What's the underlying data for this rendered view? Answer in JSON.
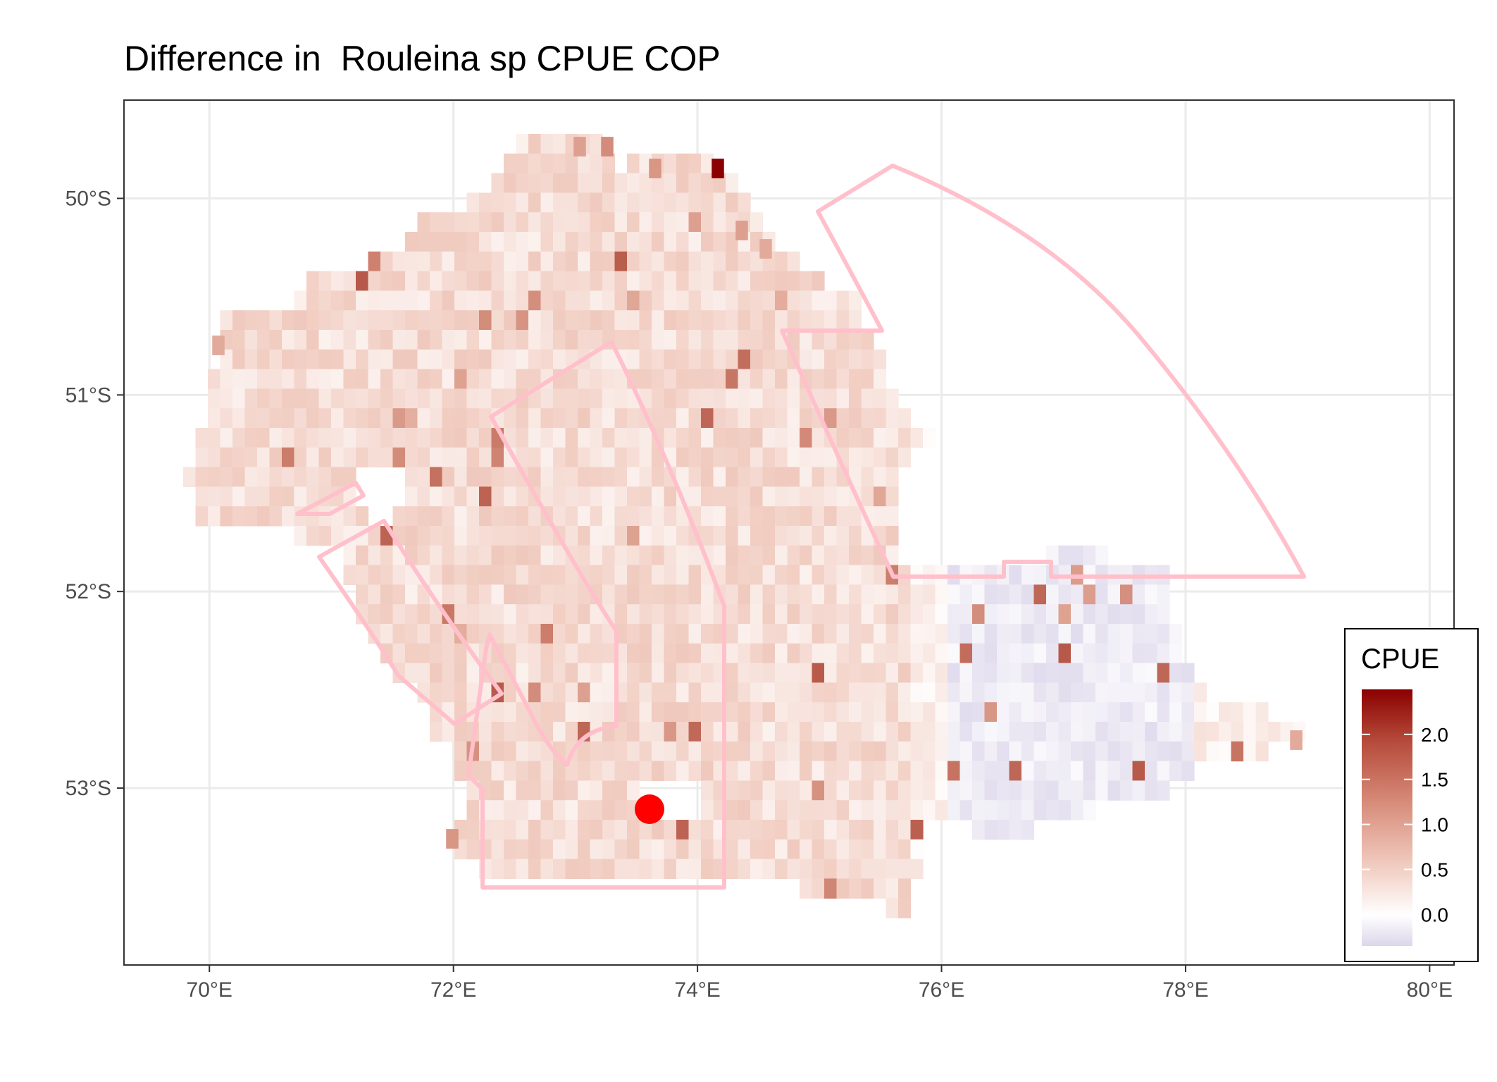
{
  "title": "Difference in  Rouleina sp CPUE COP",
  "map": {
    "x_axis": {
      "ticks": [
        "70°E",
        "72°E",
        "74°E",
        "76°E",
        "78°E",
        "80°E"
      ],
      "values": [
        70,
        72,
        74,
        76,
        78,
        80
      ],
      "range": [
        69.3,
        80.2
      ]
    },
    "y_axis": {
      "ticks": [
        "50°S",
        "51°S",
        "52°S",
        "53°S"
      ],
      "values": [
        -50,
        -51,
        -52,
        -53
      ],
      "range": [
        -53.9,
        -49.5
      ]
    },
    "grid": true,
    "colors": {
      "high": "#8b0000",
      "zero": "#ffffff",
      "low": "#dcd6ea",
      "outline": "#ffc0cb",
      "marker": "#ff0000",
      "grid": "#ebebeb"
    },
    "marker": {
      "lon": 73.6,
      "lat": -53.1
    },
    "legend": {
      "title": "CPUE",
      "labels": [
        "2.0",
        "1.5",
        "1.0",
        "0.5",
        "0.0"
      ],
      "values": [
        2.0,
        1.5,
        1.0,
        0.5,
        0.0
      ],
      "range": [
        -0.35,
        2.5
      ],
      "placement": "bottom-right"
    }
  }
}
